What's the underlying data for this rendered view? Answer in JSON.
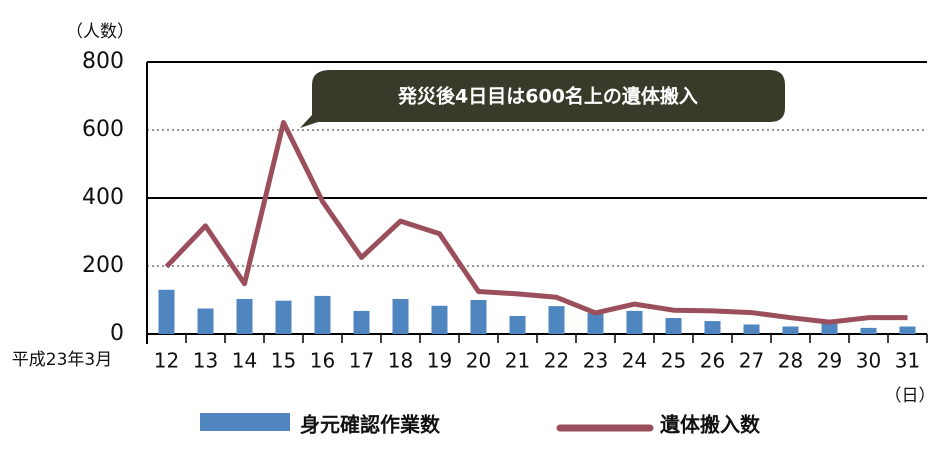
{
  "chart_data": {
    "type": "bar_line",
    "y_unit": "（人数）",
    "x_prefix": "平成23年3月",
    "x_unit": "（日）",
    "annotation": "発災後4日目は600名上の遺体搬入",
    "categories": [
      "12",
      "13",
      "14",
      "15",
      "16",
      "17",
      "18",
      "19",
      "20",
      "21",
      "22",
      "23",
      "24",
      "25",
      "26",
      "27",
      "28",
      "29",
      "30",
      "31"
    ],
    "series": [
      {
        "name": "身元確認作業数",
        "type": "bar",
        "color": "#4f86c0",
        "values": [
          130,
          75,
          103,
          98,
          112,
          68,
          103,
          83,
          100,
          53,
          82,
          62,
          68,
          47,
          38,
          28,
          22,
          33,
          18,
          22
        ]
      },
      {
        "name": "遺体搬入数",
        "type": "line",
        "color": "#9b4f5c",
        "values": [
          198,
          318,
          148,
          622,
          390,
          225,
          332,
          295,
          125,
          118,
          108,
          62,
          88,
          70,
          68,
          63,
          48,
          35,
          48,
          48
        ]
      }
    ],
    "ylim": [
      0,
      800
    ],
    "yticks": [
      0,
      200,
      400,
      600,
      800
    ],
    "grid": true
  }
}
